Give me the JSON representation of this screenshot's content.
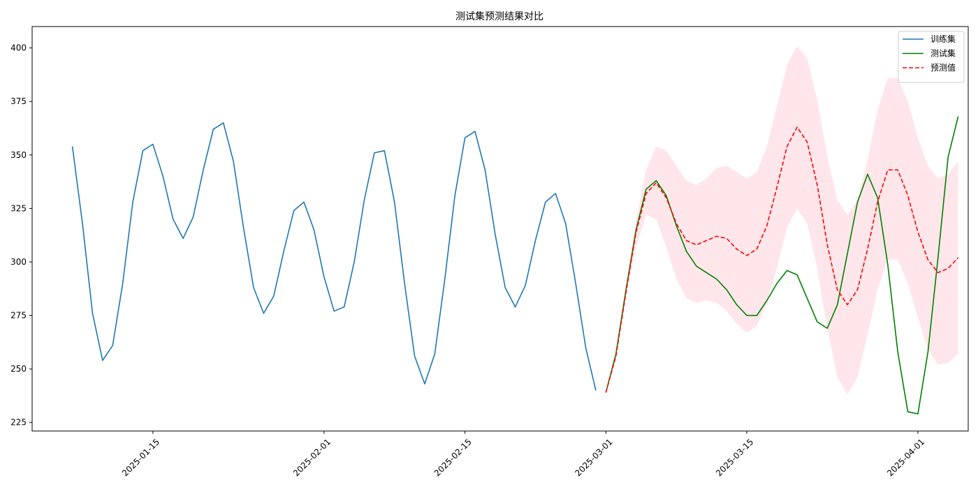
{
  "chart_data": {
    "type": "line",
    "title": "测试集预测结果对比",
    "xlabel": "",
    "ylabel": "",
    "x_axis_type": "date",
    "xlim": [
      "2025-01-03",
      "2025-04-06"
    ],
    "ylim": [
      221,
      410
    ],
    "x_ticks": [
      "2025-01-15",
      "2025-02-01",
      "2025-02-15",
      "2025-03-01",
      "2025-03-15",
      "2025-04-01"
    ],
    "y_ticks": [
      225,
      250,
      275,
      300,
      325,
      350,
      375,
      400
    ],
    "grid": false,
    "legend_position": "top-right",
    "series": [
      {
        "name": "训练集",
        "color": "#1f77b4",
        "style": "solid",
        "points": [
          [
            "2025-01-07",
            354
          ],
          [
            "2025-01-08",
            318
          ],
          [
            "2025-01-09",
            276
          ],
          [
            "2025-01-10",
            254
          ],
          [
            "2025-01-11",
            261
          ],
          [
            "2025-01-12",
            290
          ],
          [
            "2025-01-13",
            328
          ],
          [
            "2025-01-14",
            352
          ],
          [
            "2025-01-15",
            355
          ],
          [
            "2025-01-16",
            340
          ],
          [
            "2025-01-17",
            320
          ],
          [
            "2025-01-18",
            311
          ],
          [
            "2025-01-19",
            321
          ],
          [
            "2025-01-20",
            343
          ],
          [
            "2025-01-21",
            362
          ],
          [
            "2025-01-22",
            365
          ],
          [
            "2025-01-23",
            347
          ],
          [
            "2025-01-24",
            316
          ],
          [
            "2025-01-25",
            288
          ],
          [
            "2025-01-26",
            276
          ],
          [
            "2025-01-27",
            284
          ],
          [
            "2025-01-28",
            305
          ],
          [
            "2025-01-29",
            324
          ],
          [
            "2025-01-30",
            328
          ],
          [
            "2025-01-31",
            315
          ],
          [
            "2025-02-01",
            293
          ],
          [
            "2025-02-02",
            277
          ],
          [
            "2025-02-03",
            279
          ],
          [
            "2025-02-04",
            300
          ],
          [
            "2025-02-05",
            329
          ],
          [
            "2025-02-06",
            351
          ],
          [
            "2025-02-07",
            352
          ],
          [
            "2025-02-08",
            328
          ],
          [
            "2025-02-09",
            290
          ],
          [
            "2025-02-10",
            256
          ],
          [
            "2025-02-11",
            243
          ],
          [
            "2025-02-12",
            257
          ],
          [
            "2025-02-13",
            292
          ],
          [
            "2025-02-14",
            331
          ],
          [
            "2025-02-15",
            358
          ],
          [
            "2025-02-16",
            361
          ],
          [
            "2025-02-17",
            343
          ],
          [
            "2025-02-18",
            313
          ],
          [
            "2025-02-19",
            288
          ],
          [
            "2025-02-20",
            279
          ],
          [
            "2025-02-21",
            289
          ],
          [
            "2025-02-22",
            310
          ],
          [
            "2025-02-23",
            328
          ],
          [
            "2025-02-24",
            332
          ],
          [
            "2025-02-25",
            318
          ],
          [
            "2025-02-26",
            290
          ],
          [
            "2025-02-27",
            260
          ],
          [
            "2025-02-28",
            240
          ]
        ]
      },
      {
        "name": "测试集",
        "color": "#008000",
        "style": "solid",
        "points": [
          [
            "2025-03-01",
            239
          ],
          [
            "2025-03-02",
            257
          ],
          [
            "2025-03-03",
            287
          ],
          [
            "2025-03-04",
            315
          ],
          [
            "2025-03-05",
            334
          ],
          [
            "2025-03-06",
            338
          ],
          [
            "2025-03-07",
            331
          ],
          [
            "2025-03-08",
            317
          ],
          [
            "2025-03-09",
            305
          ],
          [
            "2025-03-10",
            298
          ],
          [
            "2025-03-11",
            295
          ],
          [
            "2025-03-12",
            292
          ],
          [
            "2025-03-13",
            287
          ],
          [
            "2025-03-14",
            280
          ],
          [
            "2025-03-15",
            275
          ],
          [
            "2025-03-16",
            275
          ],
          [
            "2025-03-17",
            282
          ],
          [
            "2025-03-18",
            290
          ],
          [
            "2025-03-19",
            296
          ],
          [
            "2025-03-20",
            294
          ],
          [
            "2025-03-21",
            283
          ],
          [
            "2025-03-22",
            272
          ],
          [
            "2025-03-23",
            269
          ],
          [
            "2025-03-24",
            280
          ],
          [
            "2025-03-25",
            304
          ],
          [
            "2025-03-26",
            328
          ],
          [
            "2025-03-27",
            341
          ],
          [
            "2025-03-28",
            330
          ],
          [
            "2025-03-29",
            299
          ],
          [
            "2025-03-30",
            258
          ],
          [
            "2025-03-31",
            230
          ],
          [
            "2025-04-01",
            229
          ],
          [
            "2025-04-02",
            258
          ],
          [
            "2025-04-03",
            302
          ],
          [
            "2025-04-04",
            349
          ],
          [
            "2025-04-05",
            368
          ]
        ]
      },
      {
        "name": "预测值",
        "color": "#ff0000",
        "style": "dashed",
        "points": [
          [
            "2025-03-01",
            239
          ],
          [
            "2025-03-02",
            256
          ],
          [
            "2025-03-03",
            286
          ],
          [
            "2025-03-04",
            314
          ],
          [
            "2025-03-05",
            332
          ],
          [
            "2025-03-06",
            337
          ],
          [
            "2025-03-07",
            330
          ],
          [
            "2025-03-08",
            318
          ],
          [
            "2025-03-09",
            310
          ],
          [
            "2025-03-10",
            308
          ],
          [
            "2025-03-11",
            310
          ],
          [
            "2025-03-12",
            312
          ],
          [
            "2025-03-13",
            311
          ],
          [
            "2025-03-14",
            306
          ],
          [
            "2025-03-15",
            303
          ],
          [
            "2025-03-16",
            306
          ],
          [
            "2025-03-17",
            317
          ],
          [
            "2025-03-18",
            335
          ],
          [
            "2025-03-19",
            354
          ],
          [
            "2025-03-20",
            363
          ],
          [
            "2025-03-21",
            356
          ],
          [
            "2025-03-22",
            336
          ],
          [
            "2025-03-23",
            308
          ],
          [
            "2025-03-24",
            287
          ],
          [
            "2025-03-25",
            280
          ],
          [
            "2025-03-26",
            287
          ],
          [
            "2025-03-27",
            306
          ],
          [
            "2025-03-28",
            328
          ],
          [
            "2025-03-29",
            343
          ],
          [
            "2025-03-30",
            343
          ],
          [
            "2025-03-31",
            331
          ],
          [
            "2025-04-01",
            314
          ],
          [
            "2025-04-02",
            301
          ],
          [
            "2025-04-03",
            295
          ],
          [
            "2025-04-04",
            297
          ],
          [
            "2025-04-05",
            302
          ]
        ]
      }
    ],
    "confidence_band": {
      "color": "#ffc0cb",
      "x": [
        "2025-03-01",
        "2025-03-02",
        "2025-03-03",
        "2025-03-04",
        "2025-03-05",
        "2025-03-06",
        "2025-03-07",
        "2025-03-08",
        "2025-03-09",
        "2025-03-10",
        "2025-03-11",
        "2025-03-12",
        "2025-03-13",
        "2025-03-14",
        "2025-03-15",
        "2025-03-16",
        "2025-03-17",
        "2025-03-18",
        "2025-03-19",
        "2025-03-20",
        "2025-03-21",
        "2025-03-22",
        "2025-03-23",
        "2025-03-24",
        "2025-03-25",
        "2025-03-26",
        "2025-03-27",
        "2025-03-28",
        "2025-03-29",
        "2025-03-30",
        "2025-03-31",
        "2025-04-01",
        "2025-04-02",
        "2025-04-03",
        "2025-04-04",
        "2025-04-05"
      ],
      "lower": [
        239,
        255,
        283,
        307,
        322,
        320,
        307,
        292,
        283,
        281,
        282,
        281,
        277,
        271,
        267,
        270,
        281,
        297,
        316,
        325,
        318,
        297,
        269,
        246,
        238,
        246,
        266,
        287,
        301,
        301,
        290,
        274,
        259,
        252,
        253,
        257
      ],
      "upper": [
        239,
        258,
        289,
        320,
        343,
        354,
        352,
        345,
        338,
        336,
        339,
        344,
        345,
        342,
        339,
        342,
        354,
        373,
        392,
        401,
        395,
        376,
        349,
        329,
        322,
        329,
        348,
        371,
        386,
        386,
        375,
        358,
        345,
        339,
        341,
        347
      ]
    }
  }
}
